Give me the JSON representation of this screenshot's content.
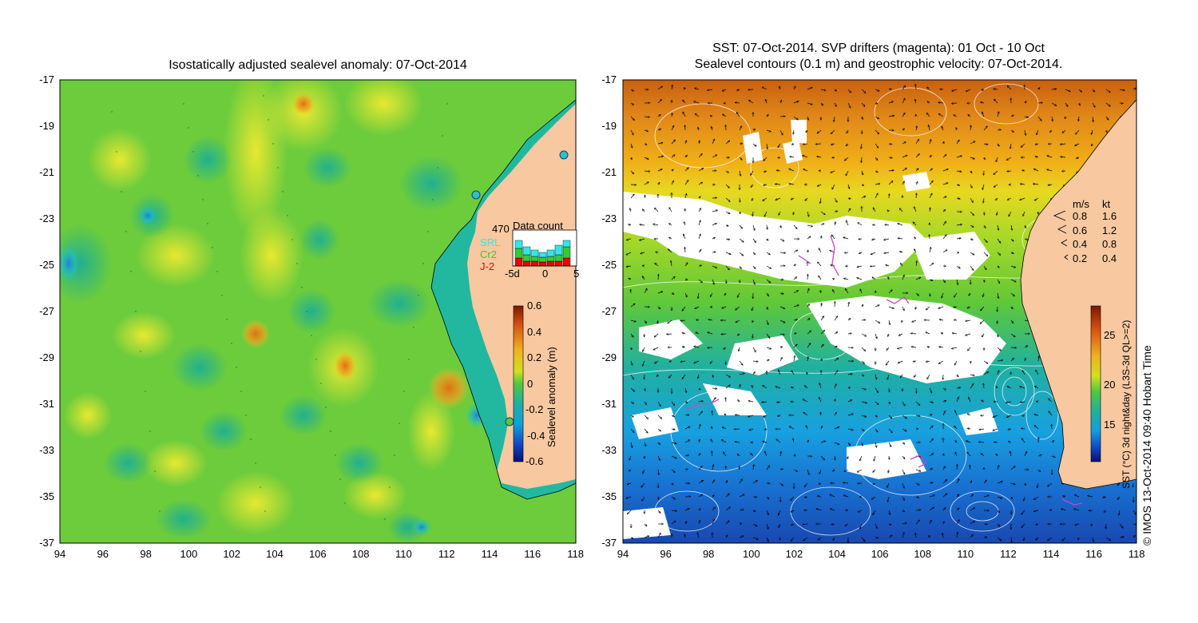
{
  "left_panel": {
    "title": "Isostatically adjusted sealevel anomaly: 07-Oct-2014",
    "yticks": [
      "-17",
      "-19",
      "-21",
      "-23",
      "-25",
      "-27",
      "-29",
      "-31",
      "-33",
      "-35",
      "-37"
    ],
    "xticks": [
      "94",
      "96",
      "98",
      "100",
      "102",
      "104",
      "106",
      "108",
      "110",
      "112",
      "114",
      "116",
      "118"
    ],
    "data_count": {
      "title": "Data count",
      "total": "470",
      "legend": [
        {
          "label": "SRL",
          "color": "#33e6e6"
        },
        {
          "label": "Cr2",
          "color": "#33cc33"
        },
        {
          "label": "J-2",
          "color": "#ee0000"
        }
      ],
      "xticks": [
        "-5d",
        "0",
        "5"
      ]
    },
    "colorbar": {
      "label": "Sealevel anomaly (m)",
      "ticks": [
        "0.6",
        "0.4",
        "0.2",
        "0",
        "-0.2",
        "-0.4",
        "-0.6"
      ]
    }
  },
  "right_panel": {
    "title_line1": "SST: 07-Oct-2014. SVP drifters (magenta): 01 Oct - 10 Oct",
    "title_line2": "Sealevel contours (0.1 m) and geostrophic velocity: 07-Oct-2014.",
    "yticks": [
      "-17",
      "-19",
      "-21",
      "-23",
      "-25",
      "-27",
      "-29",
      "-31",
      "-33",
      "-35",
      "-37"
    ],
    "xticks": [
      "94",
      "96",
      "98",
      "100",
      "102",
      "104",
      "106",
      "108",
      "110",
      "112",
      "114",
      "116",
      "118"
    ],
    "velocity_legend": {
      "header_ms": "m/s",
      "header_kt": "kt",
      "rows": [
        {
          "ms": "0.8",
          "kt": "1.6"
        },
        {
          "ms": "0.6",
          "kt": "1.2"
        },
        {
          "ms": "0.4",
          "kt": "0.8"
        },
        {
          "ms": "0.2",
          "kt": "0.4"
        }
      ]
    },
    "colorbar": {
      "label": "SST (°C) 3d night&day (L3S-3d QL>=2)",
      "ticks": [
        "25",
        "20",
        "15"
      ]
    }
  },
  "credit": "© IMOS 13-Oct-2014 09:40 Hobart Time",
  "colors": {
    "land": "#f8c8a0",
    "slope_teal": "#22b8a0",
    "contour": "#ffffff",
    "drifter": "#cc44cc"
  }
}
